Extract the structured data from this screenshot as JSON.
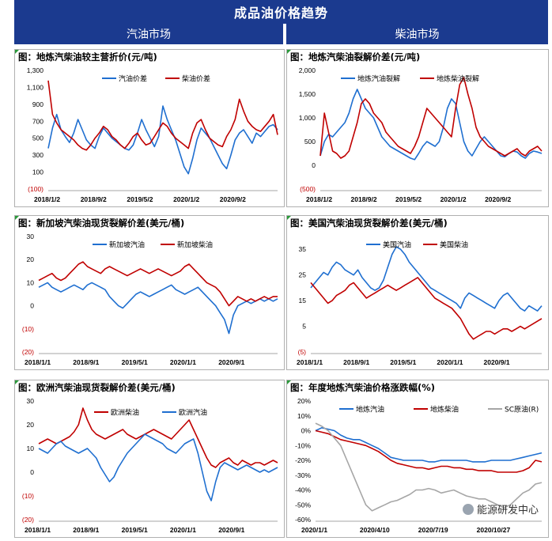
{
  "banner": "成品油价格趋势",
  "left_section": "汽油市场",
  "right_section": "柴油市场",
  "watermark": "能源研发中心",
  "colors": {
    "blue": "#1f6fd0",
    "red": "#c00000",
    "gray": "#a6a6a6",
    "header": "#1b3a8f"
  },
  "chart_data": [
    {
      "type": "line",
      "title": "图：地炼汽柴油较主营折价(元/吨)",
      "ylim": [
        -100,
        1300
      ],
      "yticks": [
        1300,
        1100,
        900,
        700,
        500,
        300,
        100
      ],
      "yticks_neg": [
        -100
      ],
      "ytick_labels": [
        "1,300",
        "1,100",
        "900",
        "700",
        "500",
        "300",
        "100"
      ],
      "ytick_neg_labels": [
        "(100)"
      ],
      "xticks": [
        "2018/1/2",
        "2018/9/2",
        "2019/5/2",
        "2020/1/2",
        "2020/9/2"
      ],
      "series": [
        {
          "name": "汽油价差",
          "color": "blue",
          "values": [
            380,
            620,
            780,
            600,
            520,
            450,
            560,
            720,
            600,
            480,
            420,
            380,
            520,
            620,
            560,
            500,
            460,
            420,
            380,
            360,
            420,
            560,
            720,
            600,
            500,
            400,
            520,
            880,
            720,
            600,
            480,
            320,
            160,
            80,
            260,
            480,
            620,
            560,
            500,
            400,
            300,
            200,
            140,
            300,
            480,
            560,
            600,
            520,
            440,
            560,
            520,
            580,
            640,
            660,
            600
          ]
        },
        {
          "name": "柴油价差",
          "color": "red",
          "values": [
            1180,
            780,
            680,
            600,
            560,
            520,
            480,
            420,
            380,
            360,
            420,
            500,
            560,
            640,
            600,
            520,
            480,
            420,
            380,
            440,
            520,
            560,
            480,
            420,
            440,
            520,
            600,
            680,
            640,
            560,
            500,
            460,
            420,
            380,
            560,
            680,
            720,
            600,
            500,
            460,
            420,
            400,
            520,
            600,
            720,
            960,
            820,
            700,
            640,
            600,
            580,
            640,
            700,
            780,
            540
          ]
        }
      ]
    },
    {
      "type": "line",
      "title": "图：地炼汽柴油裂解价差(元/吨)",
      "ylim": [
        -500,
        2000
      ],
      "yticks": [
        2000,
        1500,
        1000,
        500,
        0
      ],
      "yticks_neg": [
        -500
      ],
      "ytick_labels": [
        "2,000",
        "1,500",
        "1,000",
        "500",
        "0"
      ],
      "ytick_neg_labels": [
        "(500)"
      ],
      "xticks": [
        "2018/1/2",
        "2018/9/2",
        "2019/5/2",
        "2020/1/2",
        "2020/9/2"
      ],
      "series": [
        {
          "name": "地炼汽油裂解",
          "color": "blue",
          "values": [
            200,
            500,
            650,
            600,
            700,
            800,
            900,
            1100,
            1400,
            1600,
            1400,
            1200,
            1100,
            1000,
            800,
            600,
            500,
            400,
            350,
            300,
            250,
            200,
            150,
            120,
            250,
            400,
            500,
            450,
            400,
            500,
            800,
            1200,
            1400,
            1300,
            900,
            500,
            300,
            200,
            350,
            500,
            600,
            500,
            400,
            300,
            200,
            180,
            250,
            300,
            280,
            200,
            150,
            250,
            300,
            280,
            250
          ]
        },
        {
          "name": "地炼柴油裂解",
          "color": "red",
          "values": [
            200,
            1100,
            700,
            300,
            250,
            150,
            200,
            300,
            600,
            900,
            1300,
            1400,
            1300,
            1100,
            1000,
            900,
            700,
            600,
            500,
            400,
            350,
            300,
            250,
            400,
            600,
            900,
            1200,
            1100,
            1000,
            900,
            800,
            700,
            600,
            1200,
            1700,
            1850,
            1500,
            1200,
            800,
            600,
            500,
            400,
            350,
            300,
            250,
            200,
            250,
            300,
            350,
            250,
            200,
            300,
            350,
            400,
            300
          ]
        }
      ]
    },
    {
      "type": "line",
      "title": "图：新加坡汽柴油现货裂解价差(美元/桶)",
      "ylim": [
        -20,
        30
      ],
      "yticks": [
        30,
        20,
        10,
        0
      ],
      "yticks_neg": [
        -10,
        -20
      ],
      "ytick_labels": [
        "30",
        "20",
        "10",
        "0"
      ],
      "ytick_neg_labels": [
        "(10)",
        "(20)"
      ],
      "xticks": [
        "2018/1/1",
        "2018/9/1",
        "2019/5/1",
        "2020/1/1",
        "2020/9/1"
      ],
      "series": [
        {
          "name": "新加坡汽油",
          "color": "blue",
          "values": [
            8,
            9,
            10,
            8,
            7,
            6,
            7,
            8,
            9,
            8,
            7,
            9,
            10,
            9,
            8,
            7,
            4,
            2,
            0,
            -1,
            1,
            3,
            5,
            6,
            5,
            4,
            5,
            6,
            7,
            8,
            9,
            7,
            6,
            5,
            6,
            7,
            8,
            6,
            4,
            2,
            0,
            -3,
            -6,
            -12,
            -4,
            0,
            1,
            2,
            1,
            2,
            3,
            2,
            3,
            2,
            3
          ]
        },
        {
          "name": "新加坡柴油",
          "color": "red",
          "values": [
            11,
            12,
            13,
            14,
            12,
            11,
            12,
            14,
            16,
            18,
            19,
            17,
            16,
            15,
            14,
            16,
            17,
            16,
            15,
            14,
            13,
            14,
            15,
            16,
            15,
            14,
            15,
            16,
            15,
            14,
            13,
            14,
            15,
            17,
            18,
            16,
            14,
            12,
            10,
            9,
            8,
            6,
            3,
            0,
            2,
            4,
            3,
            2,
            3,
            2,
            3,
            4,
            3,
            4,
            4
          ]
        }
      ]
    },
    {
      "type": "line",
      "title": "图：美国汽柴油现货裂解价差(美元/桶)",
      "ylim": [
        -5,
        40
      ],
      "yticks": [
        35,
        25,
        15,
        5
      ],
      "yticks_neg": [
        -5
      ],
      "ytick_labels": [
        "35",
        "25",
        "15",
        "5"
      ],
      "ytick_neg_labels": [
        "(5)"
      ],
      "xticks": [
        "2018/1/1",
        "2018/9/1",
        "2019/5/1",
        "2020/1/1",
        "2020/9/1"
      ],
      "series": [
        {
          "name": "美国汽油",
          "color": "blue",
          "values": [
            20,
            22,
            24,
            26,
            25,
            28,
            30,
            29,
            27,
            26,
            25,
            27,
            24,
            22,
            20,
            19,
            20,
            23,
            28,
            33,
            36,
            35,
            33,
            30,
            28,
            26,
            24,
            22,
            20,
            19,
            18,
            17,
            16,
            15,
            14,
            12,
            16,
            18,
            17,
            16,
            15,
            14,
            13,
            12,
            15,
            17,
            18,
            16,
            14,
            12,
            11,
            13,
            12,
            11,
            13
          ]
        },
        {
          "name": "美国柴油",
          "color": "red",
          "values": [
            22,
            20,
            18,
            16,
            14,
            15,
            17,
            18,
            19,
            21,
            22,
            20,
            18,
            16,
            17,
            18,
            19,
            20,
            21,
            20,
            19,
            20,
            21,
            22,
            23,
            24,
            22,
            20,
            18,
            16,
            15,
            14,
            13,
            12,
            10,
            8,
            5,
            2,
            0,
            1,
            2,
            3,
            3,
            2,
            3,
            4,
            4,
            3,
            4,
            5,
            4,
            5,
            6,
            7,
            8
          ]
        }
      ]
    },
    {
      "type": "line",
      "title": "图：欧洲汽柴油现货裂解价差(美元/桶)",
      "ylim": [
        -20,
        30
      ],
      "yticks": [
        30,
        20,
        10,
        0
      ],
      "yticks_neg": [
        -10,
        -20
      ],
      "ytick_labels": [
        "30",
        "20",
        "10",
        "0"
      ],
      "ytick_neg_labels": [
        "(10)",
        "(20)"
      ],
      "xticks": [
        "2018/1/1",
        "2018/9/1",
        "2019/5/1",
        "2020/1/1",
        "2020/9/1"
      ],
      "series": [
        {
          "name": "欧洲柴油",
          "color": "red",
          "values": [
            12,
            13,
            14,
            13,
            12,
            13,
            14,
            15,
            17,
            20,
            27,
            22,
            18,
            16,
            15,
            14,
            15,
            16,
            17,
            18,
            16,
            15,
            14,
            15,
            16,
            17,
            18,
            17,
            16,
            15,
            14,
            16,
            18,
            20,
            22,
            18,
            14,
            10,
            6,
            3,
            2,
            4,
            5,
            6,
            4,
            3,
            5,
            4,
            3,
            4,
            4,
            3,
            4,
            5,
            4
          ]
        },
        {
          "name": "欧洲汽油",
          "color": "blue",
          "values": [
            10,
            9,
            8,
            10,
            12,
            13,
            11,
            10,
            9,
            8,
            9,
            10,
            8,
            6,
            2,
            -1,
            -4,
            -2,
            2,
            5,
            8,
            10,
            12,
            14,
            16,
            15,
            14,
            13,
            12,
            10,
            9,
            8,
            10,
            12,
            13,
            14,
            8,
            0,
            -8,
            -12,
            -4,
            2,
            4,
            3,
            2,
            1,
            2,
            3,
            2,
            1,
            0,
            1,
            0,
            1,
            2
          ]
        }
      ]
    },
    {
      "type": "line",
      "title": "图：年度地炼汽柴油价格涨跌幅(%)",
      "ylim": [
        -60,
        20
      ],
      "yticks": [
        20,
        10,
        0,
        -10,
        -20,
        -30,
        -40,
        -50,
        -60
      ],
      "ytick_labels": [
        "20%",
        "10%",
        "0%",
        "-10%",
        "-20%",
        "-30%",
        "-40%",
        "-50%",
        "-60%"
      ],
      "xticks": [
        "2020/1/1",
        "2020/4/10",
        "2020/7/19",
        "2020/10/27"
      ],
      "series": [
        {
          "name": "地炼汽油",
          "color": "blue",
          "values": [
            0,
            2,
            1,
            0,
            -3,
            -5,
            -6,
            -6,
            -8,
            -10,
            -12,
            -15,
            -18,
            -19,
            -20,
            -20,
            -20,
            -20,
            -21,
            -21,
            -20,
            -20,
            -20,
            -20,
            -20,
            -21,
            -21,
            -21,
            -20,
            -20,
            -20,
            -20,
            -19,
            -18,
            -17,
            -16,
            -15
          ]
        },
        {
          "name": "地炼柴油",
          "color": "red",
          "values": [
            0,
            -1,
            -2,
            -4,
            -6,
            -7,
            -8,
            -9,
            -10,
            -12,
            -14,
            -17,
            -20,
            -22,
            -23,
            -24,
            -25,
            -25,
            -26,
            -25,
            -24,
            -24,
            -25,
            -25,
            -26,
            -26,
            -27,
            -27,
            -27,
            -28,
            -28,
            -28,
            -28,
            -27,
            -25,
            -20,
            -21
          ]
        },
        {
          "name": "SC原油(R)",
          "color": "gray",
          "values": [
            5,
            3,
            0,
            -5,
            -10,
            -20,
            -30,
            -40,
            -50,
            -54,
            -52,
            -50,
            -48,
            -47,
            -45,
            -43,
            -40,
            -40,
            -39,
            -40,
            -42,
            -41,
            -40,
            -42,
            -44,
            -45,
            -46,
            -46,
            -48,
            -50,
            -52,
            -50,
            -46,
            -42,
            -40,
            -36,
            -35
          ]
        }
      ]
    }
  ]
}
